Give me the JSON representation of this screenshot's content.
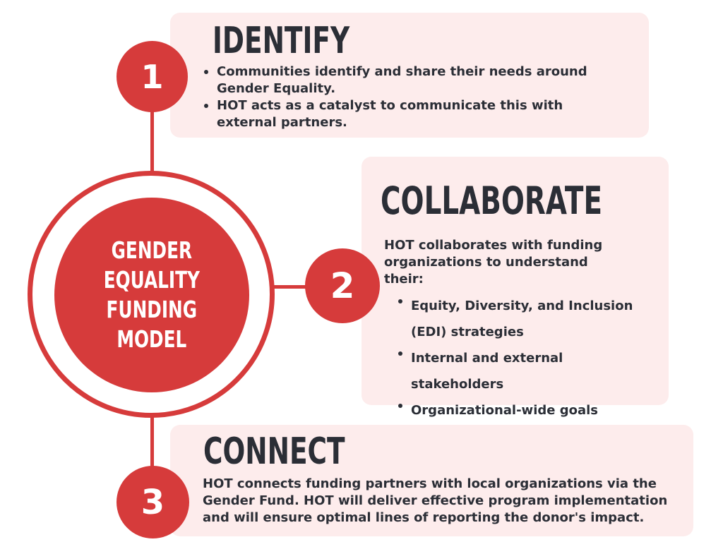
{
  "center": {
    "lines": [
      "GENDER",
      "EQUALITY",
      "FUNDING",
      "MODEL"
    ]
  },
  "steps": [
    {
      "number": "1",
      "title": "IDENTIFY",
      "bullets": [
        "Communities identify and share their needs around Gender Equality.",
        "HOT acts as a catalyst to communicate this with external partners."
      ]
    },
    {
      "number": "2",
      "title": "COLLABORATE",
      "intro": "HOT collaborates with funding organizations to understand their:",
      "bullets": [
        "Equity, Diversity, and Inclusion (EDI) strategies",
        "Internal and external stakeholders",
        "Organizational-wide goals"
      ]
    },
    {
      "number": "3",
      "title": "CONNECT",
      "paragraph": "HOT connects funding partners with local organizations via the Gender Fund. HOT will deliver effective program implementation and will ensure optimal lines of reporting the donor's impact."
    }
  ],
  "colors": {
    "accent": "#d63b3b",
    "card": "#fdecec",
    "text": "#2b2e36"
  }
}
